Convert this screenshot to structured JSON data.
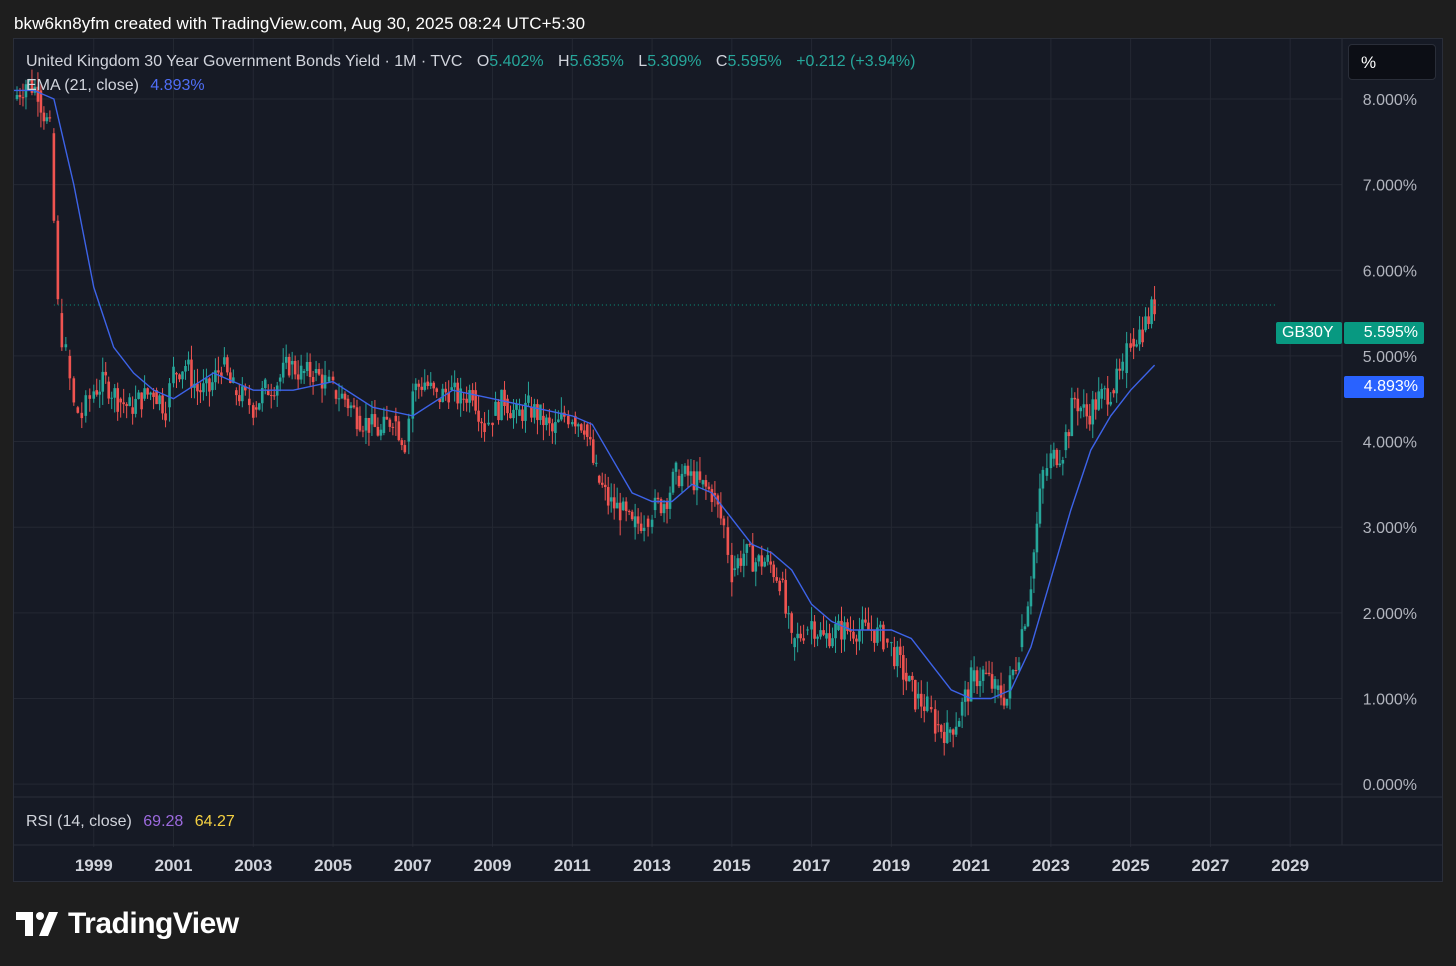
{
  "header": {
    "text": "bkw6kn8yfm created with TradingView.com, Aug 30, 2025 08:24 UTC+5:30"
  },
  "legend": {
    "symbol_title": "United Kingdom 30 Year Government Bonds Yield · 1M · TVC",
    "open_label": "O",
    "open_value": "5.402%",
    "high_label": "H",
    "high_value": "5.635%",
    "low_label": "L",
    "low_value": "5.309%",
    "close_label": "C",
    "close_value": "5.595%",
    "change": "+0.212 (+3.94%)",
    "ema_label": "EMA (21, close)",
    "ema_value": "4.893%"
  },
  "rsi": {
    "label": "RSI (14, close)",
    "value1": "69.28",
    "value2": "64.27"
  },
  "unit_button": {
    "label": "%"
  },
  "price_tags": {
    "symbol": "GB30Y",
    "last": "5.595%",
    "ema": "4.893%",
    "symbol_color": "#089981",
    "ema_color": "#2962ff"
  },
  "footer": {
    "brand": "TradingView"
  },
  "colors": {
    "up": "#26a69a",
    "down": "#ef5350",
    "ema": "#3d63e8",
    "grid": "#242833",
    "background": "#161a25"
  },
  "chart_data": {
    "type": "candlestick",
    "title": "United Kingdom 30 Year Government Bonds Yield",
    "interval": "1M",
    "y_ticks": [
      "0.000%",
      "1.000%",
      "2.000%",
      "3.000%",
      "4.000%",
      "5.000%",
      "6.000%",
      "7.000%",
      "8.000%"
    ],
    "ylim": [
      -0.15,
      8.7
    ],
    "x_ticks": [
      "1999",
      "2001",
      "2003",
      "2005",
      "2007",
      "2009",
      "2011",
      "2013",
      "2015",
      "2017",
      "2019",
      "2021",
      "2023",
      "2025",
      "2027",
      "2029"
    ],
    "xlim": [
      1997.0,
      2030.3
    ],
    "grid": true,
    "close_series": {
      "x": [
        1997.0,
        1997.3,
        1997.6,
        1997.9,
        1998.1,
        1998.3,
        1998.5,
        1998.7,
        1998.9,
        1999.0,
        1999.3,
        1999.6,
        1999.9,
        2000.2,
        2000.5,
        2000.8,
        2001.0,
        2001.3,
        2001.6,
        2001.9,
        2002.2,
        2002.5,
        2002.8,
        2003.0,
        2003.3,
        2003.6,
        2003.9,
        2004.2,
        2004.5,
        2004.8,
        2005.0,
        2005.3,
        2005.6,
        2005.9,
        2006.2,
        2006.5,
        2006.8,
        2007.0,
        2007.3,
        2007.6,
        2007.9,
        2008.2,
        2008.5,
        2008.8,
        2009.0,
        2009.3,
        2009.6,
        2009.9,
        2010.2,
        2010.5,
        2010.8,
        2011.0,
        2011.3,
        2011.6,
        2011.9,
        2012.2,
        2012.5,
        2012.8,
        2013.0,
        2013.3,
        2013.6,
        2013.9,
        2014.2,
        2014.5,
        2014.8,
        2015.0,
        2015.3,
        2015.6,
        2015.9,
        2016.2,
        2016.5,
        2016.8,
        2017.0,
        2017.3,
        2017.6,
        2017.9,
        2018.2,
        2018.5,
        2018.8,
        2019.0,
        2019.3,
        2019.6,
        2019.9,
        2020.1,
        2020.4,
        2020.7,
        2021.0,
        2021.3,
        2021.6,
        2021.9,
        2022.2,
        2022.5,
        2022.8,
        2023.0,
        2023.3,
        2023.6,
        2023.9,
        2024.2,
        2024.5,
        2024.8,
        2025.0,
        2025.3,
        2025.6
      ],
      "values": [
        8.0,
        8.2,
        8.1,
        7.6,
        5.5,
        5.0,
        4.4,
        4.3,
        4.5,
        4.6,
        4.7,
        4.5,
        4.4,
        4.5,
        4.6,
        4.4,
        4.8,
        4.9,
        4.6,
        4.6,
        4.9,
        4.6,
        4.5,
        4.4,
        4.6,
        4.7,
        4.9,
        4.8,
        4.8,
        4.7,
        4.6,
        4.5,
        4.3,
        4.2,
        4.1,
        4.3,
        4.0,
        4.6,
        4.7,
        4.5,
        4.6,
        4.5,
        4.6,
        4.2,
        4.3,
        4.5,
        4.3,
        4.4,
        4.3,
        4.1,
        4.3,
        4.3,
        4.2,
        3.6,
        3.3,
        3.2,
        3.0,
        3.1,
        3.2,
        3.3,
        3.6,
        3.6,
        3.5,
        3.4,
        3.0,
        2.5,
        2.7,
        2.6,
        2.6,
        2.4,
        1.6,
        1.8,
        1.9,
        1.7,
        1.8,
        1.8,
        1.8,
        1.8,
        1.7,
        1.6,
        1.3,
        1.0,
        0.9,
        0.7,
        0.6,
        0.8,
        1.2,
        1.3,
        1.1,
        1.0,
        1.6,
        2.4,
        3.6,
        3.8,
        3.9,
        4.5,
        4.3,
        4.5,
        4.6,
        4.8,
        5.2,
        5.3,
        5.6
      ]
    },
    "ema_21": {
      "x": [
        1997.0,
        1997.5,
        1998.0,
        1998.5,
        1999.0,
        1999.5,
        2000.0,
        2000.5,
        2001.0,
        2002.0,
        2003.0,
        2004.0,
        2005.0,
        2006.0,
        2007.0,
        2008.0,
        2009.0,
        2010.0,
        2011.0,
        2011.5,
        2012.0,
        2012.5,
        2013.0,
        2013.5,
        2014.0,
        2014.5,
        2015.0,
        2015.5,
        2016.0,
        2016.5,
        2017.0,
        2017.5,
        2018.0,
        2018.5,
        2019.0,
        2019.5,
        2020.0,
        2020.5,
        2021.0,
        2021.5,
        2022.0,
        2022.5,
        2023.0,
        2023.5,
        2024.0,
        2024.5,
        2025.0,
        2025.6
      ],
      "values": [
        8.1,
        8.1,
        8.0,
        7.0,
        5.8,
        5.1,
        4.8,
        4.6,
        4.5,
        4.8,
        4.6,
        4.6,
        4.7,
        4.4,
        4.3,
        4.6,
        4.5,
        4.4,
        4.3,
        4.2,
        3.8,
        3.4,
        3.3,
        3.3,
        3.5,
        3.4,
        3.1,
        2.8,
        2.7,
        2.5,
        2.1,
        1.9,
        1.8,
        1.8,
        1.8,
        1.7,
        1.4,
        1.1,
        1.0,
        1.0,
        1.1,
        1.6,
        2.4,
        3.2,
        3.9,
        4.3,
        4.6,
        4.893
      ]
    },
    "last_value": 5.595
  }
}
